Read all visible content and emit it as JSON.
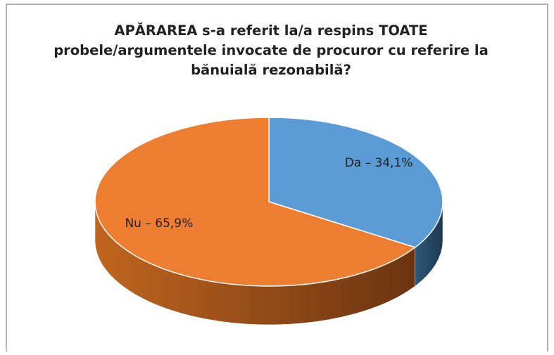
{
  "chart_data": {
    "type": "pie3d",
    "title": "APĂRAREA s-a referit la/a respins TOATE probele/argumentele invocate de procuror cu referire la bănuială rezonabilă?",
    "categories": [
      "Da",
      "Nu"
    ],
    "values": [
      34.1,
      65.9
    ],
    "value_labels": [
      "Da – 34,1%",
      "Nu – 65,9%"
    ],
    "colors": [
      "#5b9bd5",
      "#ed7d31"
    ]
  }
}
